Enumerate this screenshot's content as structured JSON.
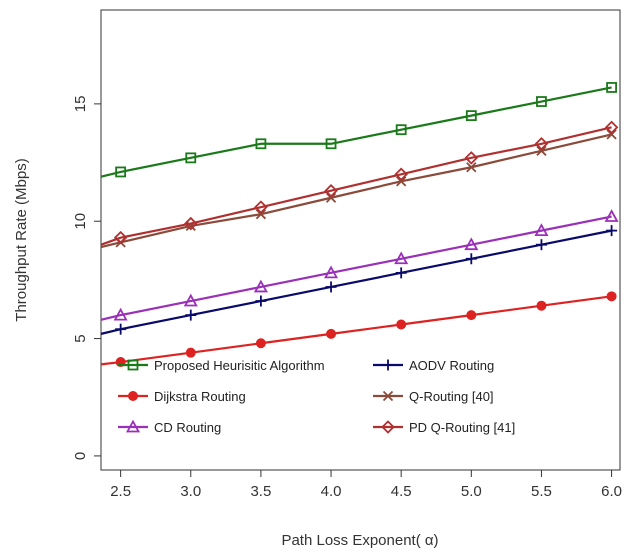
{
  "chart_data": {
    "type": "line",
    "title": "",
    "xlabel": "Path Loss Exponent( α)",
    "ylabel": "Throughput Rate (Mbps)",
    "xlim": [
      2.36,
      6.06
    ],
    "ylim": [
      -0.6,
      19.0
    ],
    "x_ticks": [
      "2.5",
      "3.0",
      "3.5",
      "4.0",
      "4.5",
      "5.0",
      "5.5",
      "6.0"
    ],
    "y_ticks": [
      "0",
      "5",
      "10",
      "15"
    ],
    "legend_position": "bottom-center",
    "x": [
      2.5,
      3.0,
      3.5,
      4.0,
      4.5,
      5.0,
      5.5,
      6.0
    ],
    "series": [
      {
        "name": "Proposed Heurisitic Algorithm",
        "color": "#1a7a1a",
        "marker": "square",
        "values": [
          12.1,
          12.7,
          13.3,
          13.3,
          13.9,
          14.5,
          15.1,
          15.7
        ],
        "line_start": [
          2.36,
          11.9
        ]
      },
      {
        "name": "Dijkstra Routing",
        "color": "#dd2222",
        "marker": "circle",
        "values": [
          4.0,
          4.4,
          4.8,
          5.2,
          5.6,
          6.0,
          6.4,
          6.8
        ],
        "line_start": [
          2.36,
          3.9
        ]
      },
      {
        "name": "CD Routing",
        "color": "#9b30b8",
        "marker": "triangle",
        "values": [
          6.0,
          6.6,
          7.2,
          7.8,
          8.4,
          9.0,
          9.6,
          10.2
        ],
        "line_start": [
          2.36,
          5.8
        ]
      },
      {
        "name": "AODV Routing",
        "color": "#0a0a6a",
        "marker": "plus",
        "values": [
          5.4,
          6.0,
          6.6,
          7.2,
          7.8,
          8.4,
          9.0,
          9.6
        ],
        "line_start": [
          2.36,
          5.2
        ]
      },
      {
        "name": "Q-Routing [40]",
        "color": "#8b4a3a",
        "marker": "x",
        "values": [
          9.1,
          9.8,
          10.3,
          11.0,
          11.7,
          12.3,
          13.0,
          13.7
        ],
        "line_start": [
          2.36,
          8.9
        ]
      },
      {
        "name": "PD Q-Routing [41]",
        "color": "#b03030",
        "marker": "diamond",
        "values": [
          9.3,
          9.9,
          10.6,
          11.3,
          12.0,
          12.7,
          13.3,
          14.0
        ],
        "line_start": [
          2.36,
          9.0
        ]
      }
    ]
  }
}
